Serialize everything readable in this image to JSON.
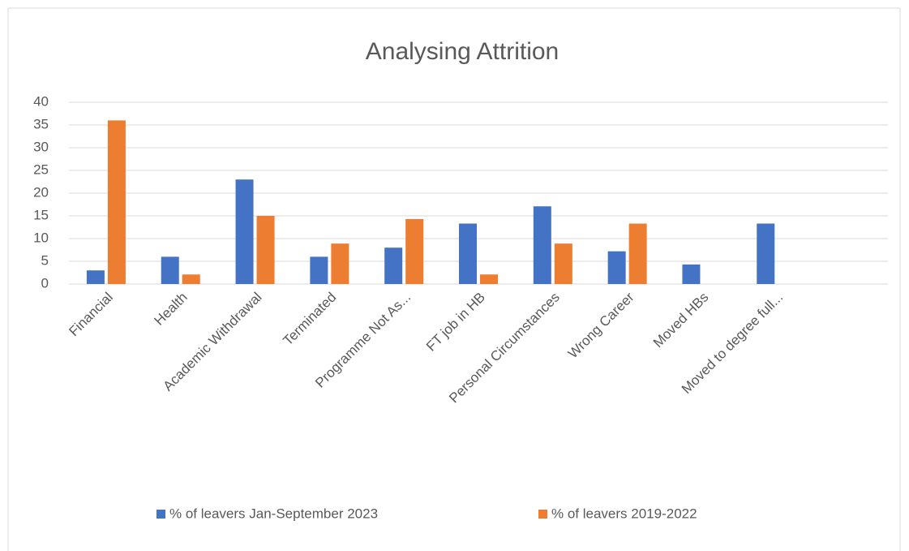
{
  "chart_data": {
    "type": "bar",
    "title": "Analysing Attrition",
    "categories": [
      "Financial",
      "Health",
      "Academic Withdrawal",
      "Terminated",
      "Programme Not As...",
      "FT job in HB",
      "Personal Circumstances",
      "Wrong Career",
      "Moved HBs",
      "Moved to degree full...",
      null
    ],
    "series": [
      {
        "name": "% of leavers Jan-September 2023",
        "color": "#4472c4",
        "values": [
          3,
          6,
          23,
          6,
          8,
          13.3,
          17.1,
          7.2,
          4.3,
          13.3,
          null
        ]
      },
      {
        "name": "% of leavers 2019-2022",
        "color": "#ed7d31",
        "values": [
          36,
          2.1,
          15,
          8.9,
          14.3,
          2.1,
          8.9,
          13.3,
          null,
          null,
          null
        ]
      }
    ],
    "ylim": [
      0,
      40
    ],
    "yticks": [
      0,
      5,
      10,
      15,
      20,
      25,
      30,
      35,
      40
    ],
    "grid": true,
    "legend": "bottom"
  }
}
